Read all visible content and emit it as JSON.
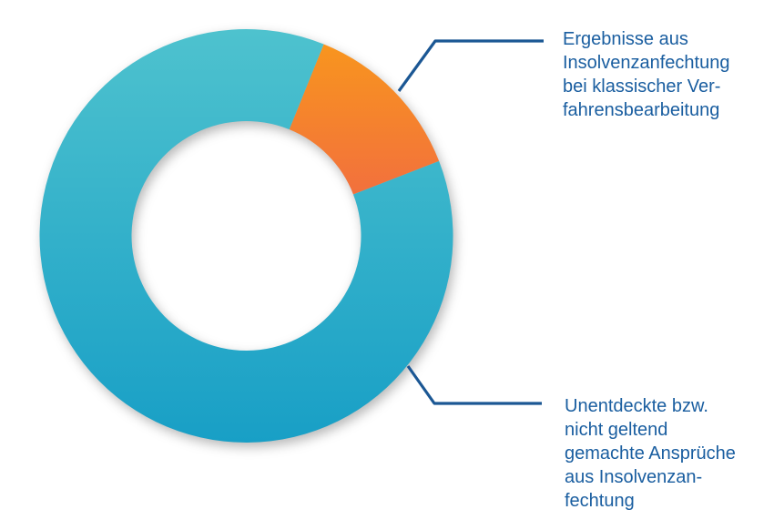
{
  "chart_data": {
    "type": "pie",
    "subtype": "donut",
    "title": "",
    "legend_position": "right-callouts",
    "start_angle_deg": 22,
    "segments": [
      {
        "name": "Ergebnisse aus Insolvenzanfechtung bei klassischer Verfahrensbearbeitung",
        "value_pct": 13,
        "color_top": "#F8951E",
        "color_bottom": "#F2703D"
      },
      {
        "name": "Unentdeckte bzw. nicht geltend gemachte Ansprüche aus Insolvenzanfechtung",
        "value_pct": 87,
        "color_top": "#4EC2CE",
        "color_bottom": "#189FC6"
      }
    ]
  },
  "callouts": {
    "top": {
      "lines": [
        "Ergebnisse aus",
        "Insolvenzanfechtung",
        "bei klassischer Ver-",
        "fahrensbearbeitung"
      ]
    },
    "bottom": {
      "lines": [
        "Unentdeckte bzw.",
        "nicht geltend",
        "gemachte Ansprüche",
        "aus Insolvenzan-",
        "fechtung"
      ]
    }
  },
  "colors": {
    "background": "#FFFFFF",
    "label_text": "#1A5EA0",
    "leader_line": "#1B5794"
  }
}
